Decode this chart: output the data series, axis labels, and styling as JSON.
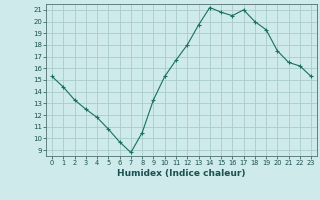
{
  "x": [
    0,
    1,
    2,
    3,
    4,
    5,
    6,
    7,
    8,
    9,
    10,
    11,
    12,
    13,
    14,
    15,
    16,
    17,
    18,
    19,
    20,
    21,
    22,
    23
  ],
  "y": [
    15.3,
    14.4,
    13.3,
    12.5,
    11.8,
    10.8,
    9.7,
    8.8,
    10.5,
    13.3,
    15.3,
    16.7,
    18.0,
    19.7,
    21.2,
    20.8,
    20.5,
    21.0,
    20.0,
    19.3,
    17.5,
    16.5,
    16.2,
    15.3
  ],
  "line_color": "#1a7060",
  "marker": "+",
  "marker_size": 3,
  "bg_color": "#ceeaea",
  "grid_color": "#aacccc",
  "xlabel": "Humidex (Indice chaleur)",
  "xlim": [
    -0.5,
    23.5
  ],
  "ylim": [
    8.5,
    21.5
  ],
  "yticks": [
    9,
    10,
    11,
    12,
    13,
    14,
    15,
    16,
    17,
    18,
    19,
    20,
    21
  ],
  "xticks": [
    0,
    1,
    2,
    3,
    4,
    5,
    6,
    7,
    8,
    9,
    10,
    11,
    12,
    13,
    14,
    15,
    16,
    17,
    18,
    19,
    20,
    21,
    22,
    23
  ]
}
